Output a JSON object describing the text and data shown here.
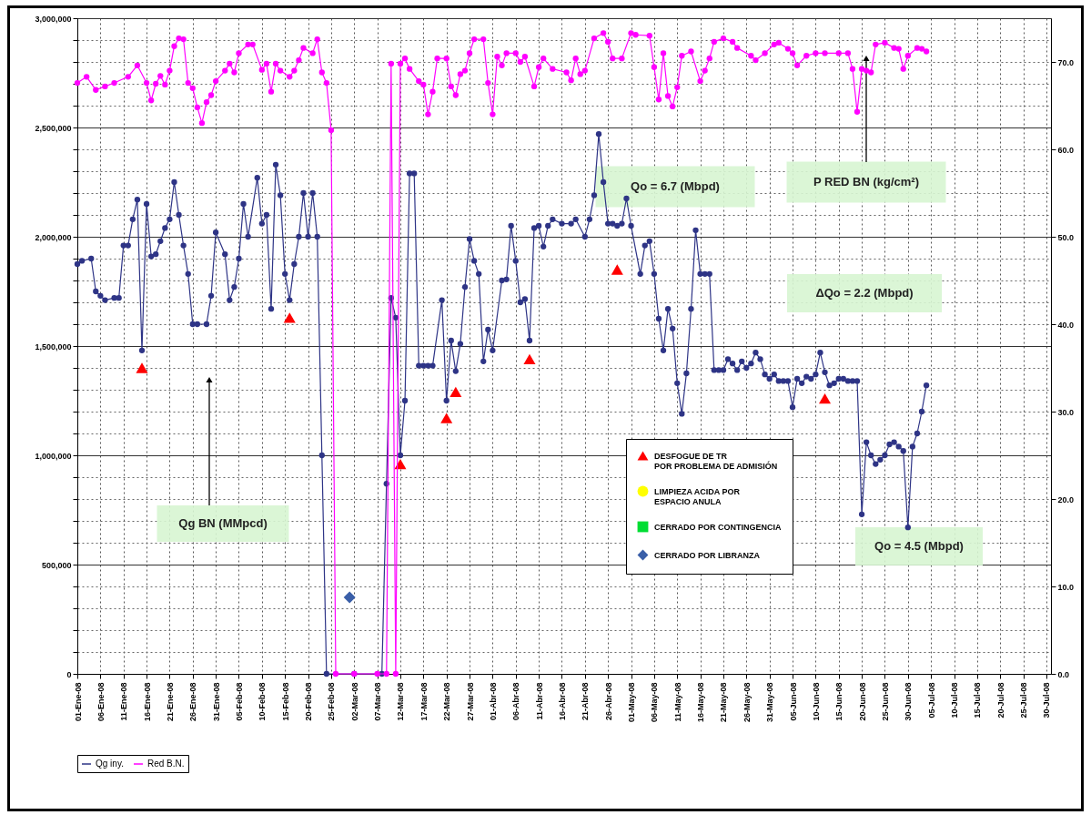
{
  "chart_data": {
    "type": "line",
    "grid": true,
    "legend": "bottom",
    "marker": "circle",
    "line_style": "solid",
    "xlim": [
      "--01-01",
      "--07-31"
    ],
    "xticks": [
      {
        "value": "--01-01",
        "label": "01-Ene-08"
      },
      {
        "value": "--01-06",
        "label": "06-Ene-08"
      },
      {
        "value": "--01-11",
        "label": "11-Ene-08"
      },
      {
        "value": "--01-16",
        "label": "16-Ene-08"
      },
      {
        "value": "--01-21",
        "label": "21-Ene-08"
      },
      {
        "value": "--01-26",
        "label": "26-Ene-08"
      },
      {
        "value": "--01-31",
        "label": "31-Ene-08"
      },
      {
        "value": "--02-05",
        "label": "05-Feb-08"
      },
      {
        "value": "--02-10",
        "label": "10-Feb-08"
      },
      {
        "value": "--02-15",
        "label": "15-Feb-08"
      },
      {
        "value": "--02-20",
        "label": "20-Feb-08"
      },
      {
        "value": "--02-25",
        "label": "25-Feb-08"
      },
      {
        "value": "--03-02",
        "label": "02-Mar-08"
      },
      {
        "value": "--03-07",
        "label": "07-Mar-08"
      },
      {
        "value": "--03-12",
        "label": "12-Mar-08"
      },
      {
        "value": "--03-17",
        "label": "17-Mar-08"
      },
      {
        "value": "--03-22",
        "label": "22-Mar-08"
      },
      {
        "value": "--03-27",
        "label": "27-Mar-08"
      },
      {
        "value": "--04-01",
        "label": "01-Abr-08"
      },
      {
        "value": "--04-06",
        "label": "06-Abr-08"
      },
      {
        "value": "--04-11",
        "label": "11-Abr-08"
      },
      {
        "value": "--04-16",
        "label": "16-Abr-08"
      },
      {
        "value": "--04-21",
        "label": "21-Abr-08"
      },
      {
        "value": "--04-26",
        "label": "26-Abr-08"
      },
      {
        "value": "--05-01",
        "label": "01-May-08"
      },
      {
        "value": "--05-06",
        "label": "06-May-08"
      },
      {
        "value": "--05-11",
        "label": "11-May-08"
      },
      {
        "value": "--05-16",
        "label": "16-May-08"
      },
      {
        "value": "--05-21",
        "label": "21-May-08"
      },
      {
        "value": "--05-26",
        "label": "26-May-08"
      },
      {
        "value": "--05-31",
        "label": "31-May-08"
      },
      {
        "value": "--06-05",
        "label": "05-Jun-08"
      },
      {
        "value": "--06-10",
        "label": "10-Jun-08"
      },
      {
        "value": "--06-15",
        "label": "15-Jun-08"
      },
      {
        "value": "--06-20",
        "label": "20-Jun-08"
      },
      {
        "value": "--06-25",
        "label": "25-Jun-08"
      },
      {
        "value": "--06-30",
        "label": "30-Jun-08"
      },
      {
        "value": "--07-05",
        "label": "05-Jul-08"
      },
      {
        "value": "--07-10",
        "label": "10-Jul-08"
      },
      {
        "value": "--07-15",
        "label": "15-Jul-08"
      },
      {
        "value": "--07-20",
        "label": "20-Jul-08"
      },
      {
        "value": "--07-25",
        "label": "25-Jul-08"
      },
      {
        "value": "--07-30",
        "label": "30-Jul-08"
      }
    ],
    "ylim": [
      0,
      3000000
    ],
    "yticks": [
      {
        "value": 0,
        "label": "0"
      },
      {
        "value": 100000,
        "label": null
      },
      {
        "value": 200000,
        "label": null
      },
      {
        "value": 300000,
        "label": null
      },
      {
        "value": 400000,
        "label": null
      },
      {
        "value": 500000,
        "label": "500,000"
      },
      {
        "value": 600000,
        "label": null
      },
      {
        "value": 700000,
        "label": null
      },
      {
        "value": 800000,
        "label": null
      },
      {
        "value": 900000,
        "label": null
      },
      {
        "value": 1000000,
        "label": "1,000,000"
      },
      {
        "value": 1100000,
        "label": null
      },
      {
        "value": 1200000,
        "label": null
      },
      {
        "value": 1300000,
        "label": null
      },
      {
        "value": 1400000,
        "label": null
      },
      {
        "value": 1500000,
        "label": "1,500,000"
      },
      {
        "value": 1600000,
        "label": null
      },
      {
        "value": 1700000,
        "label": null
      },
      {
        "value": 1800000,
        "label": null
      },
      {
        "value": 1900000,
        "label": null
      },
      {
        "value": 2000000,
        "label": "2,000,000"
      },
      {
        "value": 2100000,
        "label": null
      },
      {
        "value": 2200000,
        "label": null
      },
      {
        "value": 2300000,
        "label": null
      },
      {
        "value": 2400000,
        "label": null
      },
      {
        "value": 2500000,
        "label": "2,500,000"
      },
      {
        "value": 2600000,
        "label": null
      },
      {
        "value": 2700000,
        "label": null
      },
      {
        "value": 2800000,
        "label": null
      },
      {
        "value": 2900000,
        "label": null
      },
      {
        "value": 3000000,
        "label": "3,000,000"
      }
    ],
    "y2lim": [
      0,
      75
    ],
    "y2ticks": [
      {
        "value": 0,
        "label": "0.0"
      },
      {
        "value": 10,
        "label": "10.0"
      },
      {
        "value": 20,
        "label": "20.0"
      },
      {
        "value": 30,
        "label": "30.0"
      },
      {
        "value": 40,
        "label": "40.0"
      },
      {
        "value": 50,
        "label": "50.0"
      },
      {
        "value": 60,
        "label": "60.0"
      },
      {
        "value": 70,
        "label": "70.0"
      }
    ],
    "series": [
      {
        "name": "Qg iny.",
        "color": "#2e3486",
        "x": [
          "--01-01",
          "--01-02",
          "--01-04",
          "--01-05",
          "--01-06",
          "--01-07",
          "--01-09",
          "--01-10",
          "--01-11",
          "--01-12",
          "--01-13",
          "--01-14",
          "--01-15",
          "--01-16",
          "--01-17",
          "--01-18",
          "--01-19",
          "--01-20",
          "--01-21",
          "--01-22",
          "--01-23",
          "--01-24",
          "--01-25",
          "--01-26",
          "--01-27",
          "--01-29",
          "--01-30",
          "--01-31",
          "--02-02",
          "--02-03",
          "--02-04",
          "--02-05",
          "--02-06",
          "--02-07",
          "--02-09",
          "--02-10",
          "--02-11",
          "--02-12",
          "--02-13",
          "--02-14",
          "--02-15",
          "--02-16",
          "--02-17",
          "--02-18",
          "--02-19",
          "--02-20",
          "--02-21",
          "--02-22",
          "--02-23",
          "--02-24",
          "--03-02",
          "--03-08",
          "--03-09",
          "--03-10",
          "--03-11",
          "--03-12",
          "--03-13",
          "--03-14",
          "--03-15",
          "--03-16",
          "--03-17",
          "--03-18",
          "--03-19",
          "--03-21",
          "--03-22",
          "--03-23",
          "--03-24",
          "--03-25",
          "--03-26",
          "--03-27",
          "--03-28",
          "--03-29",
          "--03-30",
          "--03-31",
          "--04-01",
          "--04-03",
          "--04-04",
          "--04-05",
          "--04-06",
          "--04-07",
          "--04-08",
          "--04-09",
          "--04-10",
          "--04-11",
          "--04-12",
          "--04-13",
          "--04-14",
          "--04-16",
          "--04-18",
          "--04-19",
          "--04-21",
          "--04-22",
          "--04-23",
          "--04-24",
          "--04-25",
          "--04-26",
          "--04-27",
          "--04-28",
          "--04-29",
          "--04-30",
          "--05-01",
          "--05-03",
          "--05-04",
          "--05-05",
          "--05-06",
          "--05-07",
          "--05-08",
          "--05-09",
          "--05-10",
          "--05-11",
          "--05-12",
          "--05-13",
          "--05-14",
          "--05-15",
          "--05-16",
          "--05-17",
          "--05-18",
          "--05-19",
          "--05-20",
          "--05-21",
          "--05-22",
          "--05-23",
          "--05-24",
          "--05-25",
          "--05-26",
          "--05-27",
          "--05-28",
          "--05-29",
          "--05-30",
          "--05-31",
          "--06-01",
          "--06-02",
          "--06-03",
          "--06-04",
          "--06-05",
          "--06-06",
          "--06-07",
          "--06-08",
          "--06-09",
          "--06-10",
          "--06-11",
          "--06-12",
          "--06-13",
          "--06-14",
          "--06-15",
          "--06-16",
          "--06-17",
          "--06-18",
          "--06-19",
          "--06-20",
          "--06-21",
          "--06-22",
          "--06-23",
          "--06-24",
          "--06-25",
          "--06-26",
          "--06-27",
          "--06-28",
          "--06-29",
          "--06-30",
          "--07-01",
          "--07-02",
          "--07-03",
          "--07-04"
        ],
        "values": [
          1875000,
          1890000,
          1900000,
          1750000,
          1730000,
          1710000,
          1720000,
          1720000,
          1960000,
          1960000,
          2080000,
          2170000,
          1480000,
          2150000,
          1910000,
          1920000,
          1980000,
          2040000,
          2080000,
          2250000,
          2100000,
          1960000,
          1830000,
          1600000,
          1600000,
          1600000,
          1730000,
          2020000,
          1920000,
          1710000,
          1770000,
          1900000,
          2150000,
          2000000,
          2270000,
          2060000,
          2100000,
          1670000,
          2330000,
          2190000,
          1830000,
          1710000,
          1875000,
          2000000,
          2200000,
          2000000,
          2200000,
          2000000,
          1000000,
          0,
          0,
          0,
          870000,
          1720000,
          1630000,
          1000000,
          1250000,
          2290000,
          2290000,
          1410000,
          1410000,
          1410000,
          1410000,
          1710000,
          1250000,
          1525000,
          1385000,
          1510000,
          1770000,
          1990000,
          1890000,
          1830000,
          1430000,
          1575000,
          1480000,
          1800000,
          1805000,
          2050000,
          1890000,
          1700000,
          1715000,
          1525000,
          2040000,
          2050000,
          1955000,
          2050000,
          2080000,
          2060000,
          2060000,
          2080000,
          2000000,
          2080000,
          2190000,
          2470000,
          2250000,
          2060000,
          2060000,
          2050000,
          2060000,
          2175000,
          2050000,
          1830000,
          1960000,
          1980000,
          1830000,
          1625000,
          1480000,
          1670000,
          1580000,
          1330000,
          1190000,
          1375000,
          1670000,
          2030000,
          1830000,
          1830000,
          1830000,
          1390000,
          1390000,
          1390000,
          1440000,
          1420000,
          1390000,
          1430000,
          1400000,
          1420000,
          1470000,
          1440000,
          1370000,
          1350000,
          1370000,
          1340000,
          1340000,
          1340000,
          1220000,
          1350000,
          1330000,
          1360000,
          1350000,
          1370000,
          1470000,
          1380000,
          1320000,
          1330000,
          1350000,
          1350000,
          1340000,
          1340000,
          1340000,
          730000,
          1060000,
          1000000,
          960000,
          980000,
          1000000,
          1050000,
          1060000,
          1040000,
          1020000,
          670000,
          1040000,
          1100000,
          1200000,
          1320000
        ]
      },
      {
        "name": "Red B.N.",
        "axis": "y2",
        "color": "#ff00ff",
        "x": [
          "--01-01",
          "--01-03",
          "--01-05",
          "--01-07",
          "--01-09",
          "--01-12",
          "--01-14",
          "--01-16",
          "--01-17",
          "--01-18",
          "--01-19",
          "--01-20",
          "--01-21",
          "--01-22",
          "--01-23",
          "--01-24",
          "--01-25",
          "--01-26",
          "--01-27",
          "--01-28",
          "--01-29",
          "--01-30",
          "--01-31",
          "--02-02",
          "--02-03",
          "--02-04",
          "--02-05",
          "--02-07",
          "--02-08",
          "--02-10",
          "--02-11",
          "--02-12",
          "--02-13",
          "--02-14",
          "--02-16",
          "--02-17",
          "--02-18",
          "--02-19",
          "--02-21",
          "--02-22",
          "--02-23",
          "--02-24",
          "--02-25",
          "--02-26",
          "--03-02",
          "--03-07",
          "--03-09",
          "--03-10",
          "--03-11",
          "--03-12",
          "--03-13",
          "--03-14",
          "--03-16",
          "--03-17",
          "--03-18",
          "--03-19",
          "--03-20",
          "--03-22",
          "--03-23",
          "--03-24",
          "--03-25",
          "--03-26",
          "--03-27",
          "--03-28",
          "--03-30",
          "--03-31",
          "--04-01",
          "--04-02",
          "--04-03",
          "--04-04",
          "--04-06",
          "--04-07",
          "--04-08",
          "--04-10",
          "--04-11",
          "--04-12",
          "--04-14",
          "--04-17",
          "--04-18",
          "--04-19",
          "--04-20",
          "--04-21",
          "--04-23",
          "--04-25",
          "--04-26",
          "--04-27",
          "--04-29",
          "--05-01",
          "--05-02",
          "--05-05",
          "--05-06",
          "--05-07",
          "--05-08",
          "--05-09",
          "--05-10",
          "--05-11",
          "--05-12",
          "--05-14",
          "--05-16",
          "--05-17",
          "--05-18",
          "--05-19",
          "--05-21",
          "--05-23",
          "--05-24",
          "--05-27",
          "--05-28",
          "--05-30",
          "--06-01",
          "--06-02",
          "--06-04",
          "--06-05",
          "--06-06",
          "--06-08",
          "--06-10",
          "--06-12",
          "--06-15",
          "--06-17",
          "--06-18",
          "--06-19",
          "--06-20",
          "--06-21",
          "--06-22",
          "--06-23",
          "--06-25",
          "--06-27",
          "--06-28",
          "--06-29",
          "--06-30",
          "--07-02",
          "--07-03",
          "--07-04"
        ],
        "values": [
          67.6,
          68.3,
          66.8,
          67.2,
          67.6,
          68.3,
          69.6,
          67.6,
          65.6,
          67.5,
          68.4,
          67.4,
          69.0,
          71.8,
          72.7,
          72.6,
          67.6,
          67.0,
          64.8,
          63.0,
          65.4,
          66.2,
          67.8,
          69.0,
          69.8,
          68.8,
          71.0,
          72.0,
          72.0,
          69.1,
          69.8,
          66.6,
          69.8,
          69.0,
          68.3,
          69.0,
          70.2,
          71.6,
          71.0,
          72.6,
          68.8,
          67.6,
          62.2,
          0,
          0,
          0,
          0,
          69.8,
          0,
          69.8,
          70.4,
          69.2,
          67.8,
          67.4,
          64.0,
          66.6,
          70.4,
          70.4,
          67.2,
          66.2,
          68.6,
          69.0,
          71.0,
          72.6,
          72.6,
          67.6,
          64.0,
          70.6,
          69.6,
          71.0,
          71.0,
          70.0,
          70.6,
          67.2,
          69.4,
          70.4,
          69.2,
          68.8,
          67.9,
          70.4,
          68.6,
          69.0,
          72.7,
          73.3,
          72.3,
          70.4,
          70.4,
          73.3,
          73.1,
          73.0,
          69.4,
          65.7,
          71.0,
          66.1,
          64.9,
          67.1,
          70.7,
          71.2,
          67.8,
          69.0,
          70.4,
          72.3,
          72.7,
          72.3,
          71.6,
          70.7,
          70.2,
          71.0,
          72.0,
          72.2,
          71.5,
          71.0,
          69.6,
          70.7,
          71.0,
          71.0,
          71.0,
          71.0,
          69.2,
          64.3,
          69.2,
          69.0,
          68.8,
          72.0,
          72.2,
          71.6,
          71.5,
          69.2,
          70.7,
          71.6,
          71.5,
          71.2
        ]
      },
      {
        "name": "DESFOGUE DE TR\nPOR PROBLEMA DE ADMISIÓN",
        "type": "scatter",
        "marker": "triangle",
        "color": "#ff0000",
        "x": [
          "--01-15",
          "--02-16",
          "--03-12",
          "--03-22",
          "--03-24",
          "--04-09",
          "--04-28",
          "--06-12"
        ],
        "values": [
          1400000,
          1630000,
          960000,
          1170000,
          1290000,
          1440000,
          1850000,
          1260000
        ]
      },
      {
        "name": "LIMPIEZA ACIDA POR\nESPACIO ANULA",
        "type": "scatter",
        "marker": "circle",
        "color": "#ffff00"
      },
      {
        "name": "CERRADO POR CONTINGENCIA",
        "type": "scatter",
        "marker": "square",
        "color": "#00dd33"
      },
      {
        "name": "CERRADO POR LIBRANZA",
        "type": "scatter",
        "marker": "diamond",
        "color": "#3a5fa8",
        "x": [
          "--03-01"
        ],
        "values": [
          350000
        ]
      }
    ],
    "annotations": [
      "Qo = 6.7 (Mbpd)",
      "P RED BN (kg/cm²)",
      "ΔQo = 2.2 (Mbpd)",
      "Qg BN (MMpcd)",
      "Qo = 4.5 (Mbpd)"
    ]
  }
}
